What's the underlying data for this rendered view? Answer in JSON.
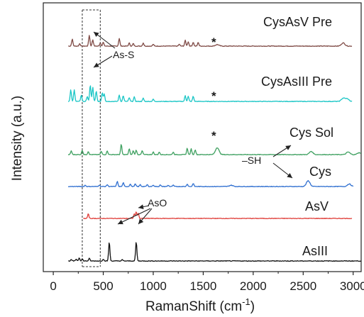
{
  "chart_data": {
    "type": "line",
    "title": "",
    "xlabel": "RamanShift (cm⁻¹)",
    "xlabel_text": "RamanShift (cm",
    "xlabel_sup": "-1",
    "xlabel_close": ")",
    "ylabel": "Intensity (a.u.)",
    "xlim": [
      -100,
      3080
    ],
    "x_ticks": [
      0,
      500,
      1000,
      1500,
      2000,
      2500,
      3000
    ],
    "x_tick_labels": [
      "0",
      "500",
      "1000",
      "1500",
      "2000",
      "2500",
      "3000"
    ],
    "y_ticks_shown": false,
    "series": [
      {
        "name": "CysAsV Pre",
        "color": "#7f4a45",
        "offset": 5,
        "range": [
          150,
          2990
        ],
        "peaks": [
          [
            190,
            0.55
          ],
          [
            265,
            0.2
          ],
          [
            360,
            0.85
          ],
          [
            395,
            0.5
          ],
          [
            470,
            0.25
          ],
          [
            500,
            0.3
          ],
          [
            660,
            0.6
          ],
          [
            760,
            0.25
          ],
          [
            800,
            0.2
          ],
          [
            900,
            0.25
          ],
          [
            1000,
            0.15
          ],
          [
            1260,
            0.15
          ],
          [
            1320,
            0.45
          ],
          [
            1350,
            0.35
          ],
          [
            1400,
            0.3
          ],
          [
            1450,
            0.3
          ],
          [
            1640,
            0.12
          ],
          [
            2900,
            0.25
          ]
        ]
      },
      {
        "name": "CysAsIII Pre",
        "color": "#1bc6c6",
        "offset": 4,
        "range": [
          150,
          2990
        ],
        "peaks": [
          [
            175,
            0.9
          ],
          [
            210,
            0.9
          ],
          [
            280,
            0.5
          ],
          [
            340,
            0.4
          ],
          [
            370,
            1.3
          ],
          [
            395,
            1.1
          ],
          [
            430,
            0.8
          ],
          [
            490,
            0.7
          ],
          [
            510,
            0.6
          ],
          [
            660,
            0.5
          ],
          [
            700,
            0.45
          ],
          [
            760,
            0.3
          ],
          [
            810,
            0.35
          ],
          [
            900,
            0.25
          ],
          [
            1000,
            0.18
          ],
          [
            1320,
            0.45
          ],
          [
            1350,
            0.4
          ],
          [
            1400,
            0.4
          ],
          [
            2900,
            0.25
          ],
          [
            2940,
            0.2
          ]
        ]
      },
      {
        "name": "Cys Sol",
        "color": "#3ea060",
        "offset": 3,
        "range": [
          150,
          3080
        ],
        "peaks": [
          [
            180,
            0.3
          ],
          [
            290,
            0.35
          ],
          [
            350,
            0.25
          ],
          [
            480,
            0.25
          ],
          [
            540,
            0.3
          ],
          [
            680,
            0.8
          ],
          [
            760,
            0.45
          ],
          [
            800,
            0.3
          ],
          [
            830,
            0.35
          ],
          [
            890,
            0.3
          ],
          [
            1000,
            0.2
          ],
          [
            1060,
            0.2
          ],
          [
            1200,
            0.2
          ],
          [
            1340,
            0.5
          ],
          [
            1380,
            0.45
          ],
          [
            1420,
            0.4
          ],
          [
            1640,
            0.55
          ],
          [
            2580,
            0.25
          ],
          [
            2950,
            0.2
          ],
          [
            3060,
            0.15
          ]
        ]
      },
      {
        "name": "Cys",
        "color": "#2f6fd0",
        "offset": 2,
        "range": [
          150,
          3000
        ],
        "peaks": [
          [
            320,
            0.1
          ],
          [
            460,
            0.12
          ],
          [
            540,
            0.15
          ],
          [
            640,
            0.4
          ],
          [
            700,
            0.3
          ],
          [
            770,
            0.2
          ],
          [
            820,
            0.2
          ],
          [
            870,
            0.15
          ],
          [
            940,
            0.15
          ],
          [
            1000,
            0.12
          ],
          [
            1070,
            0.12
          ],
          [
            1150,
            0.1
          ],
          [
            1200,
            0.1
          ],
          [
            1340,
            0.2
          ],
          [
            1400,
            0.25
          ],
          [
            1780,
            0.1
          ],
          [
            2550,
            0.45
          ],
          [
            2960,
            0.2
          ]
        ]
      },
      {
        "name": "AsV",
        "color": "#e0413c",
        "offset": 1,
        "range": [
          300,
          2990
        ],
        "peaks": [
          [
            350,
            0.35
          ],
          [
            810,
            0.35
          ],
          [
            830,
            0.5
          ],
          [
            850,
            0.4
          ]
        ]
      },
      {
        "name": "AsIII",
        "color": "#111111",
        "offset": 0,
        "range": [
          150,
          3080
        ],
        "peaks": [
          [
            180,
            0.1
          ],
          [
            230,
            0.15
          ],
          [
            260,
            0.25
          ],
          [
            290,
            0.15
          ],
          [
            360,
            0.2
          ],
          [
            500,
            0.15
          ],
          [
            560,
            1.5
          ],
          [
            690,
            0.1
          ],
          [
            830,
            1.5
          ]
        ]
      }
    ],
    "annotations": [
      {
        "text": "As-S",
        "target": "CysAsV Pre / CysAsIII Pre"
      },
      {
        "text": "*",
        "target": "CysAsV Pre"
      },
      {
        "text": "*",
        "target": "CysAsIII Pre"
      },
      {
        "text": "*",
        "target": "Cys Sol"
      },
      {
        "text": "–SH",
        "target": "Cys Sol / Cys"
      },
      {
        "text": "AsO",
        "target": "AsV / AsIII"
      }
    ]
  }
}
